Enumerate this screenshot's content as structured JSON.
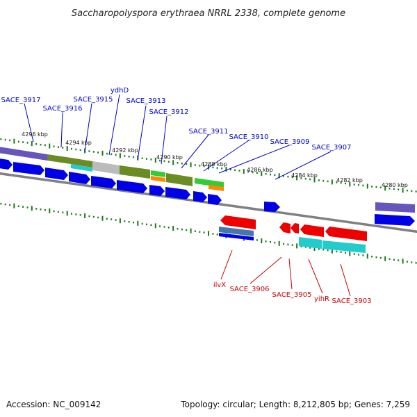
{
  "title": "Saccharopolyspora erythraea NRRL 2338, complete genome",
  "footer": {
    "accession": "Accession: NC_009142",
    "summary": "Topology: circular; Length: 8,212,805 bp; Genes: 7,259"
  },
  "colors": {
    "forward_label": "#0000cc",
    "reverse_label": "#cc0000",
    "forward_gene": "#0000e6",
    "reverse_gene": "#ee0000",
    "tick": "#1a7a1a",
    "backbone": "#808080",
    "olive": "#6b8c22",
    "cyan": "#22cccc",
    "gray_block": "#bbbbbb",
    "green": "#33cc33",
    "orange": "#ff8800",
    "purple": "#6655bb",
    "steel": "#4477aa"
  },
  "kbp_labels": [
    "4296 kbp",
    "4294 kbp",
    "4292 kbp",
    "4290 kbp",
    "4288 kbp",
    "4286 kbp",
    "4284 kbp",
    "4282 kbp",
    "4280 kbp"
  ],
  "forward_genes": [
    "SACE_3917",
    "SACE_3916",
    "SACE_3915",
    "ydhD",
    "SACE_3913",
    "SACE_3912",
    "SACE_3911",
    "SACE_3910",
    "SACE_3909",
    "SACE_3907"
  ],
  "reverse_genes": [
    "ilvX",
    "SACE_3906",
    "SACE_3905",
    "yihR",
    "SACE_3903"
  ]
}
